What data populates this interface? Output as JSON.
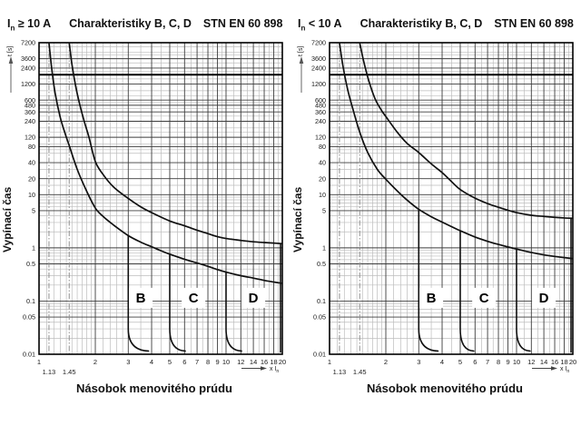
{
  "page": {
    "background": "#ffffff"
  },
  "chart_data": [
    {
      "id": "in-ge-10a",
      "type": "line",
      "title": {
        "i_label": "I",
        "i_sub": "n",
        "condition": " ≥ 10 A",
        "name": "Charakteristiky B, C, D",
        "standard": "STN EN 60 898"
      },
      "ylabel": "Vypínací čas",
      "y_unit": "t [s]",
      "xlabel": "Násobok menovitého prúdu",
      "x_unit": {
        "label": "x I",
        "sub": "n"
      },
      "xlim": [
        1,
        20
      ],
      "ylim": [
        0.01,
        7200
      ],
      "x_ticks": [
        1,
        2,
        3,
        4,
        5,
        6,
        7,
        8,
        9,
        10,
        12,
        14,
        16,
        18,
        20
      ],
      "x_ticks_special": [
        1.13,
        1.45
      ],
      "y_ticks": [
        7200,
        3600,
        2400,
        1200,
        600,
        480,
        360,
        240,
        120,
        80,
        40,
        20,
        10,
        5,
        1,
        0.5,
        0.1,
        0.05,
        0.01
      ],
      "heavy_gridline": 1800,
      "series": [
        {
          "name": "upper-limit",
          "points": [
            [
              1.45,
              7200
            ],
            [
              1.5,
              2800
            ],
            [
              1.57,
              1100
            ],
            [
              1.65,
              500
            ],
            [
              1.75,
              230
            ],
            [
              1.85,
              120
            ],
            [
              2,
              42
            ],
            [
              2.2,
              24
            ],
            [
              2.5,
              14
            ],
            [
              3,
              8.5
            ],
            [
              3.5,
              5.9
            ],
            [
              4,
              4.6
            ],
            [
              5,
              3.2
            ],
            [
              6,
              2.6
            ],
            [
              7,
              2.15
            ],
            [
              8,
              1.85
            ],
            [
              9,
              1.62
            ],
            [
              10,
              1.5
            ],
            [
              12,
              1.38
            ],
            [
              14,
              1.3
            ],
            [
              16,
              1.26
            ],
            [
              18,
              1.23
            ],
            [
              20,
              1.2
            ]
          ]
        },
        {
          "name": "lower-limit",
          "points": [
            [
              1.13,
              7200
            ],
            [
              1.17,
              2300
            ],
            [
              1.22,
              800
            ],
            [
              1.3,
              280
            ],
            [
              1.38,
              140
            ],
            [
              1.45,
              84
            ],
            [
              1.6,
              30
            ],
            [
              1.8,
              11.5
            ],
            [
              2,
              5.6
            ],
            [
              2.2,
              3.9
            ],
            [
              2.5,
              2.7
            ],
            [
              3,
              1.7
            ],
            [
              3.5,
              1.28
            ],
            [
              4,
              1.05
            ],
            [
              4.5,
              0.88
            ],
            [
              5,
              0.76
            ],
            [
              6,
              0.61
            ],
            [
              7,
              0.52
            ],
            [
              8,
              0.45
            ],
            [
              9,
              0.39
            ],
            [
              10,
              0.35
            ],
            [
              12,
              0.3
            ],
            [
              14,
              0.27
            ],
            [
              16,
              0.245
            ],
            [
              18,
              0.228
            ],
            [
              20,
              0.215
            ]
          ]
        }
      ],
      "trip_lines": [
        {
          "name": "B-instantaneous",
          "x": 3,
          "top": 1.7,
          "foot": 3.85
        },
        {
          "name": "C-instantaneous",
          "x": 5,
          "top": 0.76,
          "foot": 6.05
        },
        {
          "name": "D-instantaneous",
          "x": 10,
          "top": 0.35,
          "foot": 12.1
        },
        {
          "name": "range-end",
          "x": 20,
          "top": 1.2,
          "foot": null
        }
      ],
      "letters": [
        {
          "label": "B",
          "x": 3.5,
          "y": 0.115
        },
        {
          "label": "C",
          "x": 6.7,
          "y": 0.115
        },
        {
          "label": "D",
          "x": 14,
          "y": 0.115
        }
      ]
    },
    {
      "id": "in-lt-10a",
      "type": "line",
      "title": {
        "i_label": "I",
        "i_sub": "n",
        "condition": " < 10 A",
        "name": "Charakteristiky B, C, D",
        "standard": "STN EN 60 898"
      },
      "ylabel": "Vypínací čas",
      "y_unit": "t [s]",
      "xlabel": "Násobok menovitého prúdu",
      "x_unit": {
        "label": "x I",
        "sub": "n"
      },
      "xlim": [
        1,
        20
      ],
      "ylim": [
        0.01,
        7200
      ],
      "x_ticks": [
        1,
        2,
        3,
        4,
        5,
        6,
        7,
        8,
        9,
        10,
        12,
        14,
        16,
        18,
        20
      ],
      "x_ticks_special": [
        1.13,
        1.45
      ],
      "y_ticks": [
        7200,
        3600,
        2400,
        1200,
        600,
        480,
        360,
        240,
        120,
        80,
        40,
        20,
        10,
        5,
        1,
        0.5,
        0.1,
        0.05,
        0.01
      ],
      "heavy_gridline": 1800,
      "series": [
        {
          "name": "upper-limit",
          "points": [
            [
              1.45,
              7200
            ],
            [
              1.52,
              3300
            ],
            [
              1.62,
              1400
            ],
            [
              1.75,
              640
            ],
            [
              1.9,
              380
            ],
            [
              2,
              295
            ],
            [
              2.3,
              150
            ],
            [
              2.6,
              92
            ],
            [
              3,
              62
            ],
            [
              3.5,
              38
            ],
            [
              4,
              26
            ],
            [
              4.5,
              17.5
            ],
            [
              5,
              12.5
            ],
            [
              6,
              8.6
            ],
            [
              7,
              6.8
            ],
            [
              8,
              5.8
            ],
            [
              9,
              5.1
            ],
            [
              10,
              4.6
            ],
            [
              12,
              4.1
            ],
            [
              14,
              3.9
            ],
            [
              16,
              3.75
            ],
            [
              18,
              3.65
            ],
            [
              20,
              3.6
            ]
          ]
        },
        {
          "name": "lower-limit",
          "points": [
            [
              1.13,
              7200
            ],
            [
              1.18,
              2600
            ],
            [
              1.25,
              950
            ],
            [
              1.33,
              420
            ],
            [
              1.45,
              150
            ],
            [
              1.6,
              62
            ],
            [
              1.8,
              30
            ],
            [
              2,
              19.5
            ],
            [
              2.3,
              11.8
            ],
            [
              2.6,
              7.9
            ],
            [
              3,
              5.3
            ],
            [
              3.5,
              3.85
            ],
            [
              4,
              3.05
            ],
            [
              4.5,
              2.5
            ],
            [
              5,
              2.1
            ],
            [
              6,
              1.6
            ],
            [
              7,
              1.33
            ],
            [
              8,
              1.16
            ],
            [
              9,
              1.04
            ],
            [
              10,
              0.95
            ],
            [
              12,
              0.82
            ],
            [
              14,
              0.74
            ],
            [
              16,
              0.69
            ],
            [
              18,
              0.655
            ],
            [
              20,
              0.63
            ]
          ]
        }
      ],
      "trip_lines": [
        {
          "name": "B-instantaneous",
          "x": 3,
          "top": 5.3,
          "foot": 3.8
        },
        {
          "name": "C-instantaneous",
          "x": 5,
          "top": 2.1,
          "foot": 5.9
        },
        {
          "name": "D-instantaneous",
          "x": 10,
          "top": 0.95,
          "foot": 11.8
        },
        {
          "name": "range-end",
          "x": 20,
          "top": 3.6,
          "foot": null
        }
      ],
      "letters": [
        {
          "label": "B",
          "x": 3.5,
          "y": 0.115
        },
        {
          "label": "C",
          "x": 6.7,
          "y": 0.115
        },
        {
          "label": "D",
          "x": 14,
          "y": 0.115
        }
      ]
    }
  ],
  "style": {
    "curve_color": "#101010",
    "grid_major": "#3c3c3c",
    "grid_minor": "#bdbdbd",
    "grid_heavy": "#000000",
    "special_dash": "#8f8f8f",
    "frame": "#000000",
    "text": "#1a1a1a"
  }
}
